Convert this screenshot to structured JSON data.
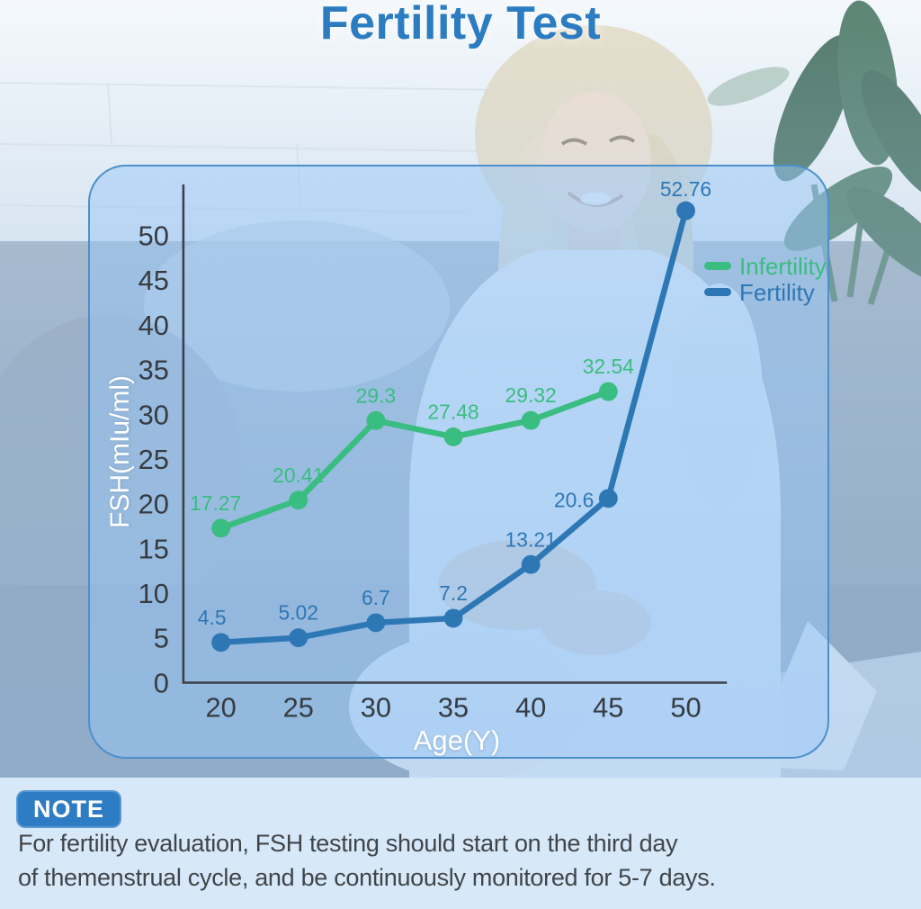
{
  "title": "Fertility Test",
  "colors": {
    "title": "#2c7cc2",
    "panel_border": "#4b90cc",
    "panel_fill": "rgba(151,199,246,0.48)",
    "axis": "#3b4149",
    "tick_text": "#363b42",
    "note_bg": "#d7e8f8",
    "note_badge_bg": "#2e7cc4",
    "note_text": "#40454a",
    "infertility": "#3abd80",
    "fertility": "#2e77b5"
  },
  "chart_data": {
    "type": "line",
    "title": "",
    "xlabel": "Age(Y)",
    "ylabel": "FSH(mIu/ml)",
    "x_ticks": [
      20,
      25,
      30,
      35,
      40,
      45,
      50
    ],
    "y_ticks": [
      0,
      5,
      10,
      15,
      20,
      25,
      30,
      35,
      40,
      45,
      50
    ],
    "xlim": [
      20,
      50
    ],
    "ylim": [
      0,
      50
    ],
    "grid": false,
    "legend_position": "top-right",
    "series": [
      {
        "name": "Infertility",
        "color": "#3abd80",
        "x": [
          20,
          25,
          30,
          35,
          40,
          45
        ],
        "values": [
          17.27,
          20.41,
          29.3,
          27.48,
          29.32,
          32.54
        ]
      },
      {
        "name": "Fertility",
        "color": "#2e77b5",
        "x": [
          20,
          25,
          30,
          35,
          40,
          45,
          50
        ],
        "values": [
          4.5,
          5.02,
          6.7,
          7.2,
          13.21,
          20.6,
          52.76
        ]
      }
    ]
  },
  "note": {
    "badge": "NOTE",
    "line1": "For fertility evaluation, FSH testing should start on the third day",
    "line2": "of themenstrual cycle, and be continuously monitored for 5-7 days."
  }
}
